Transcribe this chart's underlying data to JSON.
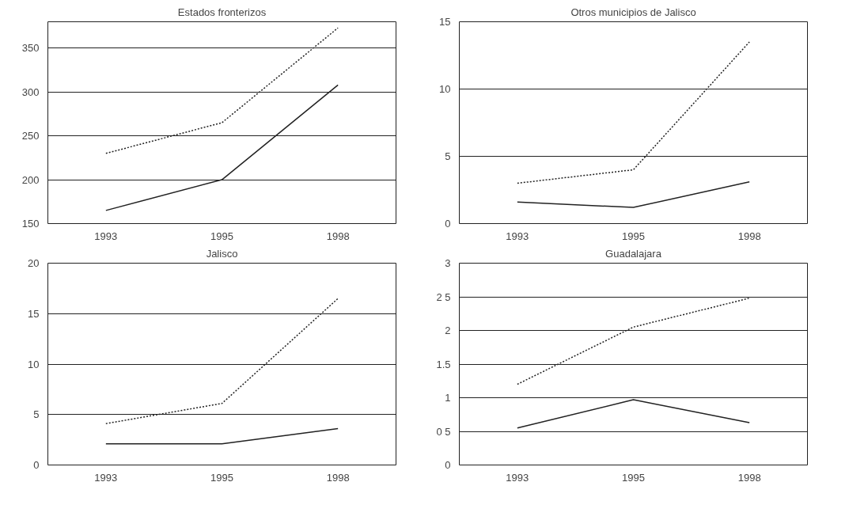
{
  "chart_data": [
    {
      "type": "line",
      "title": "Estados fronterizos",
      "categories": [
        "1993",
        "1995",
        "1998"
      ],
      "ylim": [
        150,
        380
      ],
      "yticks": [
        150,
        200,
        250,
        300,
        350
      ],
      "grid": "y",
      "series": [
        {
          "color": "#222222",
          "line_style": "dotted",
          "values": [
            230,
            265,
            373
          ]
        },
        {
          "color": "#222222",
          "line_style": "solid",
          "values": [
            165,
            200,
            308
          ]
        }
      ]
    },
    {
      "type": "line",
      "title": "Otros municipios de Jalisco",
      "categories": [
        "1993",
        "1995",
        "1998"
      ],
      "ylim": [
        0,
        15
      ],
      "yticks": [
        0,
        5,
        10,
        15
      ],
      "grid": "y",
      "series": [
        {
          "color": "#222222",
          "line_style": "dotted",
          "values": [
            3,
            4,
            13.5
          ]
        },
        {
          "color": "#222222",
          "line_style": "solid",
          "values": [
            1.6,
            1.2,
            3.1
          ]
        }
      ]
    },
    {
      "type": "line",
      "title": "Jalisco",
      "categories": [
        "1993",
        "1995",
        "1998"
      ],
      "ylim": [
        0,
        20
      ],
      "yticks": [
        0,
        5,
        10,
        15,
        20
      ],
      "grid": "y",
      "series": [
        {
          "color": "#222222",
          "line_style": "dotted",
          "values": [
            4.1,
            6.1,
            16.5
          ]
        },
        {
          "color": "#222222",
          "line_style": "solid",
          "values": [
            2.1,
            2.1,
            3.6
          ]
        }
      ]
    },
    {
      "type": "line",
      "title": "Guadalajara",
      "categories": [
        "1993",
        "1995",
        "1998"
      ],
      "ylim": [
        0,
        3
      ],
      "yticks": [
        0,
        {
          "value": 0.5,
          "label": "0 5"
        },
        1,
        1.5,
        2,
        {
          "value": 2.5,
          "label": "2 5"
        },
        3
      ],
      "grid": "y",
      "series": [
        {
          "color": "#222222",
          "line_style": "dotted",
          "values": [
            1.2,
            2.05,
            2.48
          ]
        },
        {
          "color": "#222222",
          "line_style": "solid",
          "values": [
            0.55,
            0.97,
            0.63
          ]
        }
      ]
    }
  ]
}
